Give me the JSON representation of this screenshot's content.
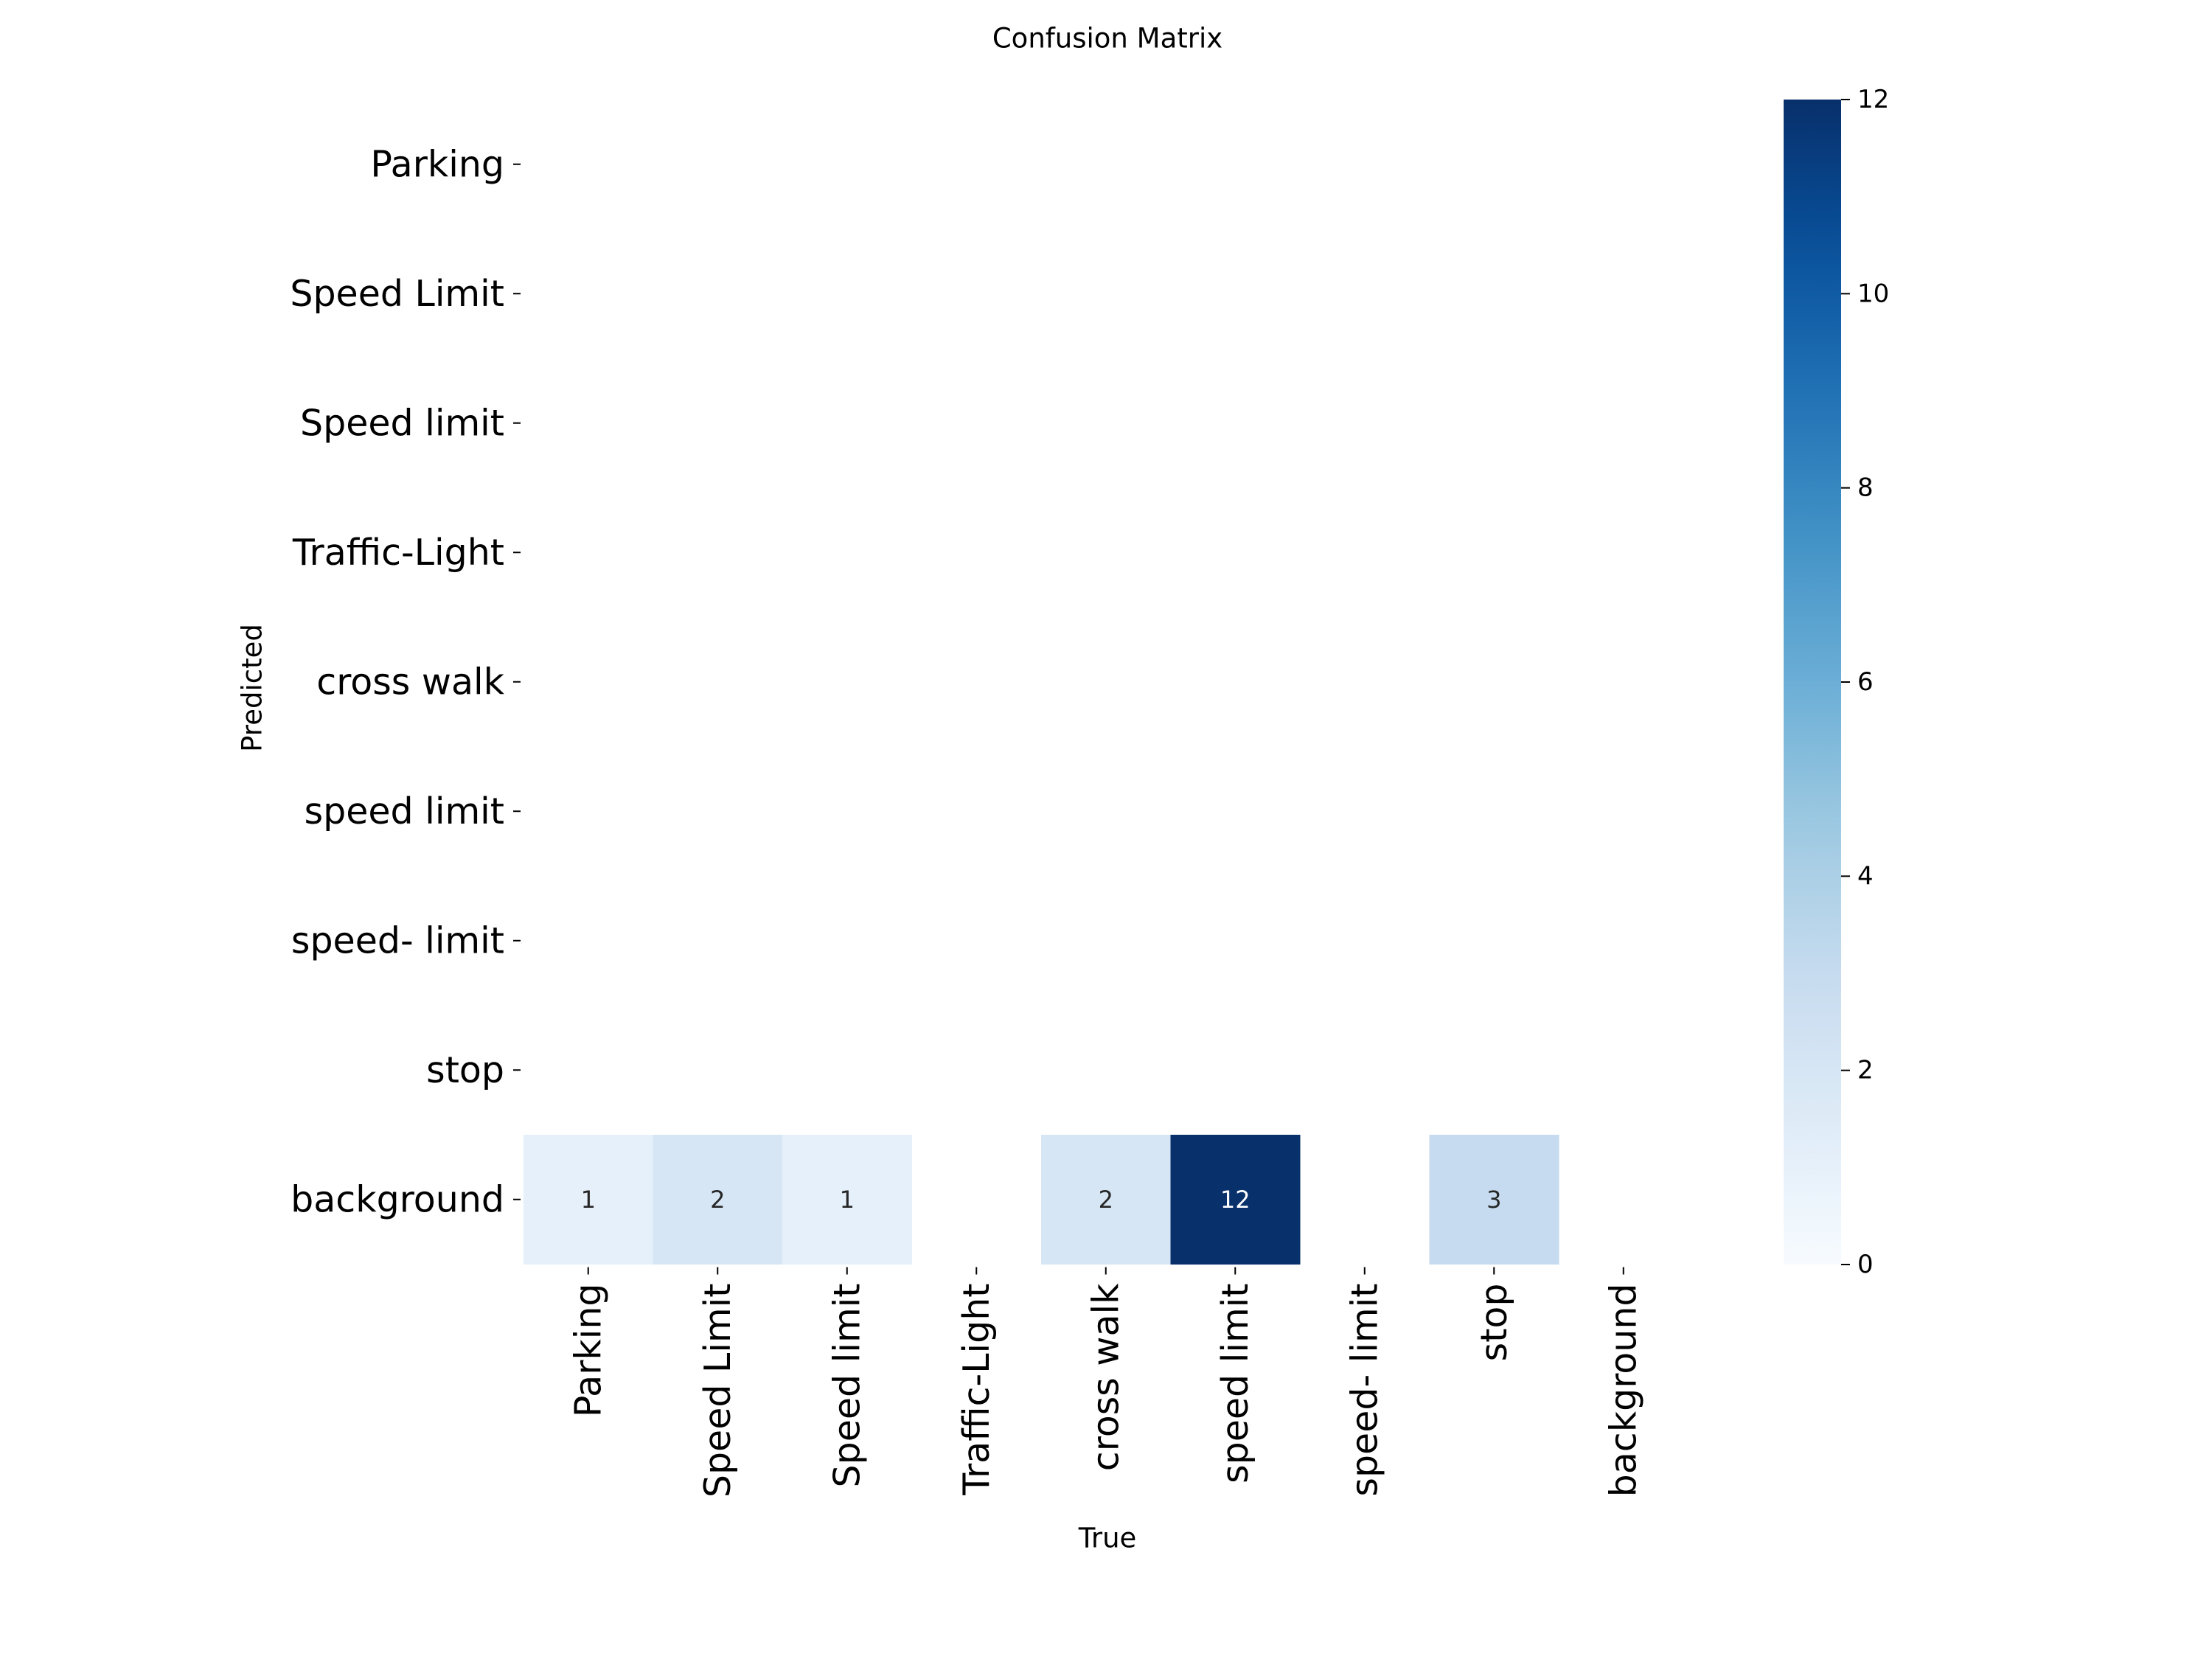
{
  "chart_data": {
    "type": "heatmap",
    "title": "Confusion Matrix",
    "xlabel": "True",
    "ylabel": "Predicted",
    "x_categories": [
      "Parking",
      "Speed Limit",
      "Speed limit",
      "Traffic-Light",
      "cross walk",
      "speed limit",
      "speed- limit",
      "stop",
      "background"
    ],
    "y_categories": [
      "Parking",
      "Speed Limit",
      "Speed limit",
      "Traffic-Light",
      "cross walk",
      "speed limit",
      "speed- limit",
      "stop",
      "background"
    ],
    "matrix": [
      [
        null,
        null,
        null,
        null,
        null,
        null,
        null,
        null,
        null
      ],
      [
        null,
        null,
        null,
        null,
        null,
        null,
        null,
        null,
        null
      ],
      [
        null,
        null,
        null,
        null,
        null,
        null,
        null,
        null,
        null
      ],
      [
        null,
        null,
        null,
        null,
        null,
        null,
        null,
        null,
        null
      ],
      [
        null,
        null,
        null,
        null,
        null,
        null,
        null,
        null,
        null
      ],
      [
        null,
        null,
        null,
        null,
        null,
        null,
        null,
        null,
        null
      ],
      [
        null,
        null,
        null,
        null,
        null,
        null,
        null,
        null,
        null
      ],
      [
        null,
        null,
        null,
        null,
        null,
        null,
        null,
        null,
        null
      ],
      [
        1,
        2,
        1,
        null,
        2,
        12,
        null,
        3,
        null
      ]
    ],
    "colormap": "Blues",
    "vmin": 0,
    "vmax": 12,
    "colorbar_ticks": [
      0,
      2,
      4,
      6,
      8,
      10,
      12
    ],
    "grid": false
  }
}
